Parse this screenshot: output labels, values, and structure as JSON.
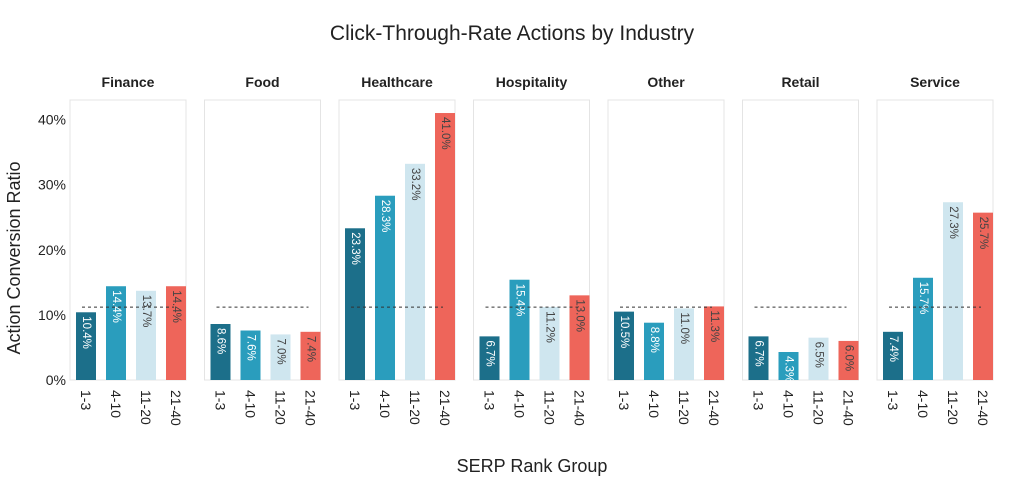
{
  "chart_data": {
    "type": "bar",
    "title": "Click-Through-Rate Actions by Industry",
    "xlabel": "SERP Rank Group",
    "ylabel": "Action Conversion Ratio",
    "ylim": [
      0,
      43
    ],
    "yticks": [
      0,
      10,
      20,
      30,
      40
    ],
    "ytick_labels": [
      "0%",
      "10%",
      "20%",
      "30%",
      "40%"
    ],
    "categories": [
      "1-3",
      "4-10",
      "11-20",
      "21-40"
    ],
    "reference_line": 11.2,
    "colors": [
      "#1c6f8a",
      "#2a9dbd",
      "#cfe6ef",
      "#ee655a"
    ],
    "label_colors": [
      "#ffffff",
      "#ffffff",
      "#444444",
      "#444444"
    ],
    "panels": [
      {
        "name": "Finance",
        "values": [
          10.4,
          14.4,
          13.7,
          14.4
        ],
        "labels": [
          "10.4%",
          "14.4%",
          "13.7%",
          "14.4%"
        ]
      },
      {
        "name": "Food",
        "values": [
          8.6,
          7.6,
          7.0,
          7.4
        ],
        "labels": [
          "8.6%",
          "7.6%",
          "7.0%",
          "7.4%"
        ]
      },
      {
        "name": "Healthcare",
        "values": [
          23.3,
          28.3,
          33.2,
          41.0
        ],
        "labels": [
          "23.3%",
          "28.3%",
          "33.2%",
          "41.0%"
        ]
      },
      {
        "name": "Hospitality",
        "values": [
          6.7,
          15.4,
          11.2,
          13.0
        ],
        "labels": [
          "6.7%",
          "15.4%",
          "11.2%",
          "13.0%"
        ]
      },
      {
        "name": "Other",
        "values": [
          10.5,
          8.8,
          11.0,
          11.3
        ],
        "labels": [
          "10.5%",
          "8.8%",
          "11.0%",
          "11.3%"
        ]
      },
      {
        "name": "Retail",
        "values": [
          6.7,
          4.3,
          6.5,
          6.0
        ],
        "labels": [
          "6.7%",
          "4.3%",
          "6.5%",
          "6.0%"
        ]
      },
      {
        "name": "Service",
        "values": [
          7.4,
          15.7,
          27.3,
          25.7
        ],
        "labels": [
          "7.4%",
          "15.7%",
          "27.3%",
          "25.7%"
        ]
      }
    ]
  }
}
